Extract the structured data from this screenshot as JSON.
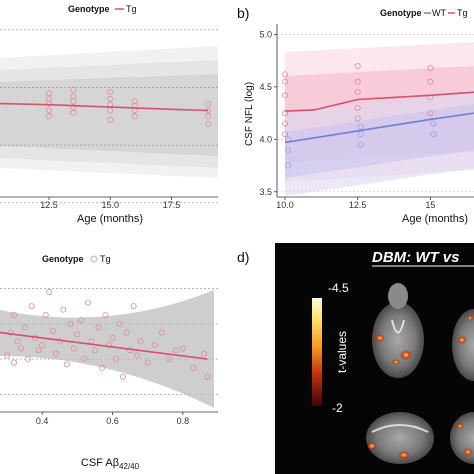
{
  "panel_a": {
    "legend_title": "Genotype",
    "legend_items": [
      {
        "label": "Tg",
        "color": "#d9506a"
      }
    ],
    "xlabel": "Age (months)",
    "x_ticks": [
      "12.5",
      "15.0",
      "17.5"
    ]
  },
  "panel_b": {
    "letter": "b)",
    "legend_title": "Genotype",
    "legend_items": [
      {
        "label": "WT",
        "color": "#6f7fd8"
      },
      {
        "label": "Tg",
        "color": "#d9506a"
      }
    ],
    "ylabel": "CSF NFL (log)",
    "xlabel": "Age (months)",
    "x_ticks": [
      "10.0",
      "12.5",
      "15"
    ],
    "y_ticks": [
      "5.0",
      "4.5",
      "4.0",
      "3.5"
    ]
  },
  "panel_c": {
    "legend_title": "Genotype",
    "legend_items": [
      {
        "label": "Tg",
        "color": "#d9506a"
      }
    ],
    "xlabel": "CSF Aβ",
    "xlabel_sub": "42/40",
    "x_ticks": [
      "0.4",
      "0.6",
      "0.8"
    ]
  },
  "panel_d": {
    "letter": "d)",
    "title": "DBM: WT vs",
    "colorbar_label": "t-values",
    "colorbar_max": "-4.5",
    "colorbar_min": "-2"
  },
  "chart_data": [
    {
      "type": "line",
      "panel": "a",
      "xlabel": "Age (months)",
      "ylabel": "",
      "series": [
        {
          "name": "Tg",
          "x": [
            10.5,
            12.5,
            15.0,
            17.5,
            19.0
          ],
          "y": [
            4.36,
            4.35,
            4.33,
            4.31,
            4.3
          ]
        }
      ],
      "xlim": [
        10.5,
        19.4
      ],
      "grid": true,
      "legend": "top"
    },
    {
      "type": "line",
      "panel": "b",
      "xlabel": "Age (months)",
      "ylabel": "CSF NFL (log)",
      "series": [
        {
          "name": "WT",
          "x": [
            10.0,
            12.5,
            15.0,
            16.5
          ],
          "y": [
            3.97,
            4.08,
            4.19,
            4.25
          ]
        },
        {
          "name": "Tg",
          "x": [
            10.0,
            11.0,
            12.5,
            15.0,
            16.5
          ],
          "y": [
            4.27,
            4.28,
            4.38,
            4.42,
            4.45
          ]
        }
      ],
      "xlim": [
        9.8,
        16.5
      ],
      "ylim": [
        3.45,
        5.1
      ],
      "grid": true,
      "legend": "top"
    },
    {
      "type": "scatter",
      "panel": "c",
      "xlabel": "CSF Aβ42/40",
      "ylabel": "",
      "series": [
        {
          "name": "Tg",
          "fit_x": [
            0.28,
            0.87
          ],
          "fit_y": [
            4.45,
            4.3
          ],
          "points_x": [
            0.3,
            0.31,
            0.32,
            0.32,
            0.33,
            0.34,
            0.35,
            0.36,
            0.37,
            0.38,
            0.39,
            0.4,
            0.41,
            0.42,
            0.43,
            0.44,
            0.45,
            0.46,
            0.47,
            0.48,
            0.49,
            0.5,
            0.51,
            0.52,
            0.53,
            0.54,
            0.55,
            0.56,
            0.57,
            0.58,
            0.59,
            0.6,
            0.61,
            0.62,
            0.63,
            0.64,
            0.65,
            0.66,
            0.67,
            0.68,
            0.7,
            0.72,
            0.74,
            0.76,
            0.78,
            0.8,
            0.83,
            0.86,
            0.87
          ],
          "points_y": [
            4.32,
            4.45,
            4.28,
            4.55,
            4.4,
            4.36,
            4.48,
            4.3,
            4.6,
            4.42,
            4.35,
            4.38,
            4.55,
            4.68,
            4.46,
            4.33,
            4.4,
            4.58,
            4.27,
            4.5,
            4.36,
            4.44,
            4.52,
            4.3,
            4.62,
            4.4,
            4.35,
            4.48,
            4.25,
            4.55,
            4.38,
            4.42,
            4.3,
            4.5,
            4.2,
            4.45,
            4.35,
            4.6,
            4.32,
            4.4,
            4.28,
            4.38,
            4.45,
            4.3,
            4.35,
            4.36,
            4.25,
            4.33,
            4.2
          ]
        }
      ],
      "xlim": [
        0.28,
        0.9
      ],
      "grid": true,
      "legend": "top"
    }
  ]
}
